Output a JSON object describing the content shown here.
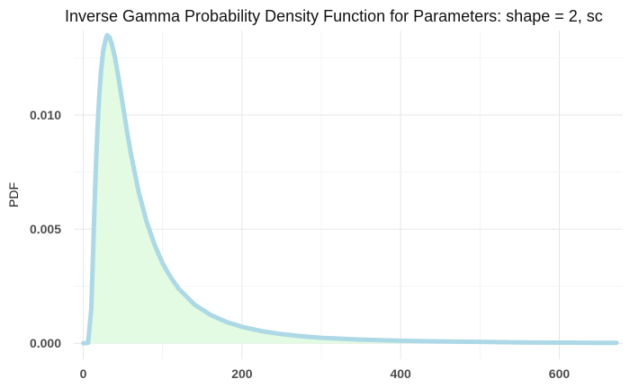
{
  "chart_data": {
    "type": "area",
    "title": "Inverse Gamma Probability Density Function for Parameters: shape = 2, sc",
    "xlabel": "",
    "ylabel": "PDF",
    "xlim": [
      -12,
      680
    ],
    "ylim": [
      -0.0007,
      0.0137
    ],
    "x_ticks": [
      0,
      200,
      400,
      600
    ],
    "x_tick_labels": [
      "0",
      "200",
      "400",
      "600"
    ],
    "y_ticks": [
      0.0,
      0.005,
      0.01
    ],
    "y_tick_labels": [
      "0.000",
      "0.005",
      "0.010"
    ],
    "grid": true,
    "line_color": "#add8e6",
    "fill_color": "#e2fbe2",
    "series": [
      {
        "x": [
          0,
          6,
          10,
          12,
          14,
          16,
          18,
          20,
          22,
          25,
          28,
          30,
          33,
          36,
          40,
          45,
          50,
          55,
          60,
          70,
          80,
          90,
          100,
          110,
          120,
          140,
          160,
          180,
          200,
          225,
          250,
          275,
          300,
          350,
          400,
          450,
          500,
          550,
          600,
          650,
          672
        ],
        "y": [
          0.0,
          2e-05,
          0.0015,
          0.0036,
          0.0059,
          0.0079,
          0.0095,
          0.0108,
          0.0118,
          0.0128,
          0.0133,
          0.0135,
          0.0134,
          0.0131,
          0.0125,
          0.0115,
          0.0104,
          0.0093,
          0.0083,
          0.0066,
          0.0053,
          0.0043,
          0.0035,
          0.0029,
          0.0024,
          0.0017,
          0.00125,
          0.00094,
          0.00072,
          0.00053,
          0.0004,
          0.00031,
          0.00024,
          0.00016,
          0.00011,
          8e-05,
          6e-05,
          4e-05,
          3e-05,
          2e-05,
          2e-05
        ]
      }
    ]
  }
}
